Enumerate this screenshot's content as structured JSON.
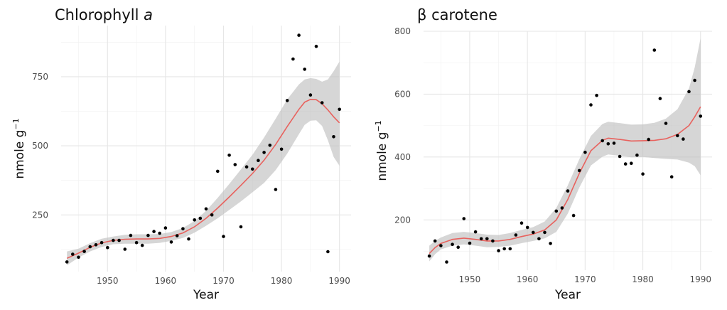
{
  "chart_data": [
    {
      "type": "scatter",
      "title": "Chlorophyll",
      "title_italic": "a",
      "xlabel": "Year",
      "ylabel": "nmole g",
      "ylabel_superscript": "−1",
      "xlim": [
        1942,
        1992
      ],
      "ylim": [
        45,
        935
      ],
      "xticks": [
        1950,
        1960,
        1970,
        1980,
        1990
      ],
      "yticks": [
        250,
        500,
        750
      ],
      "grid": true,
      "fit_color": "#e8625e",
      "band_color": "#bdbdbd",
      "points": [
        [
          1943,
          80
        ],
        [
          1944,
          108
        ],
        [
          1945,
          97
        ],
        [
          1946,
          118
        ],
        [
          1947,
          135
        ],
        [
          1948,
          142
        ],
        [
          1949,
          150
        ],
        [
          1950,
          132
        ],
        [
          1951,
          158
        ],
        [
          1952,
          158
        ],
        [
          1953,
          126
        ],
        [
          1954,
          176
        ],
        [
          1955,
          150
        ],
        [
          1956,
          140
        ],
        [
          1957,
          176
        ],
        [
          1958,
          190
        ],
        [
          1959,
          184
        ],
        [
          1960,
          203
        ],
        [
          1961,
          152
        ],
        [
          1962,
          175
        ],
        [
          1963,
          200
        ],
        [
          1964,
          163
        ],
        [
          1965,
          232
        ],
        [
          1966,
          238
        ],
        [
          1967,
          272
        ],
        [
          1968,
          250
        ],
        [
          1969,
          408
        ],
        [
          1970,
          172
        ],
        [
          1971,
          466
        ],
        [
          1972,
          432
        ],
        [
          1973,
          207
        ],
        [
          1974,
          424
        ],
        [
          1975,
          416
        ],
        [
          1976,
          447
        ],
        [
          1977,
          476
        ],
        [
          1978,
          502
        ],
        [
          1979,
          342
        ],
        [
          1980,
          488
        ],
        [
          1981,
          664
        ],
        [
          1982,
          814
        ],
        [
          1983,
          900
        ],
        [
          1984,
          777
        ],
        [
          1985,
          684
        ],
        [
          1986,
          860
        ],
        [
          1987,
          656
        ],
        [
          1988,
          117
        ],
        [
          1989,
          533
        ],
        [
          1990,
          632
        ]
      ],
      "fit": [
        [
          1943,
          93
        ],
        [
          1945,
          112
        ],
        [
          1947,
          133
        ],
        [
          1949,
          149
        ],
        [
          1951,
          158
        ],
        [
          1953,
          162
        ],
        [
          1955,
          163
        ],
        [
          1957,
          163
        ],
        [
          1959,
          165
        ],
        [
          1961,
          172
        ],
        [
          1963,
          185
        ],
        [
          1965,
          207
        ],
        [
          1967,
          238
        ],
        [
          1969,
          275
        ],
        [
          1971,
          315
        ],
        [
          1973,
          357
        ],
        [
          1975,
          400
        ],
        [
          1977,
          448
        ],
        [
          1979,
          505
        ],
        [
          1981,
          570
        ],
        [
          1983,
          632
        ],
        [
          1984,
          658
        ],
        [
          1985,
          668
        ],
        [
          1986,
          667
        ],
        [
          1987,
          652
        ],
        [
          1988,
          630
        ],
        [
          1989,
          605
        ],
        [
          1990,
          583
        ]
      ],
      "band_upper": [
        [
          1943,
          118
        ],
        [
          1945,
          128
        ],
        [
          1947,
          148
        ],
        [
          1949,
          164
        ],
        [
          1951,
          172
        ],
        [
          1953,
          178
        ],
        [
          1955,
          180
        ],
        [
          1957,
          180
        ],
        [
          1959,
          181
        ],
        [
          1961,
          188
        ],
        [
          1963,
          203
        ],
        [
          1965,
          228
        ],
        [
          1967,
          265
        ],
        [
          1969,
          312
        ],
        [
          1971,
          362
        ],
        [
          1973,
          415
        ],
        [
          1975,
          468
        ],
        [
          1977,
          530
        ],
        [
          1979,
          598
        ],
        [
          1981,
          668
        ],
        [
          1983,
          722
        ],
        [
          1984,
          740
        ],
        [
          1985,
          745
        ],
        [
          1986,
          742
        ],
        [
          1987,
          732
        ],
        [
          1988,
          740
        ],
        [
          1989,
          770
        ],
        [
          1990,
          805
        ]
      ],
      "band_lower": [
        [
          1943,
          68
        ],
        [
          1945,
          96
        ],
        [
          1947,
          118
        ],
        [
          1949,
          134
        ],
        [
          1951,
          144
        ],
        [
          1953,
          146
        ],
        [
          1955,
          146
        ],
        [
          1957,
          146
        ],
        [
          1959,
          149
        ],
        [
          1961,
          156
        ],
        [
          1963,
          167
        ],
        [
          1965,
          186
        ],
        [
          1967,
          211
        ],
        [
          1969,
          238
        ],
        [
          1971,
          268
        ],
        [
          1973,
          299
        ],
        [
          1975,
          332
        ],
        [
          1977,
          366
        ],
        [
          1979,
          412
        ],
        [
          1981,
          472
        ],
        [
          1983,
          542
        ],
        [
          1984,
          576
        ],
        [
          1985,
          591
        ],
        [
          1986,
          592
        ],
        [
          1987,
          572
        ],
        [
          1988,
          520
        ],
        [
          1989,
          460
        ],
        [
          1990,
          428
        ]
      ]
    },
    {
      "type": "scatter",
      "title": "β carotene",
      "xlabel": "Year",
      "ylabel": "nmole g",
      "ylabel_superscript": "−1",
      "xlim": [
        1942,
        1992
      ],
      "ylim": [
        40,
        800
      ],
      "xticks": [
        1950,
        1960,
        1970,
        1980,
        1990
      ],
      "yticks": [
        200,
        400,
        600,
        800
      ],
      "grid": true,
      "fit_color": "#e8625e",
      "band_color": "#bdbdbd",
      "points": [
        [
          1943,
          85
        ],
        [
          1944,
          133
        ],
        [
          1945,
          118
        ],
        [
          1946,
          66
        ],
        [
          1947,
          122
        ],
        [
          1948,
          113
        ],
        [
          1949,
          204
        ],
        [
          1950,
          126
        ],
        [
          1951,
          162
        ],
        [
          1952,
          140
        ],
        [
          1953,
          140
        ],
        [
          1954,
          133
        ],
        [
          1955,
          102
        ],
        [
          1956,
          108
        ],
        [
          1957,
          108
        ],
        [
          1958,
          152
        ],
        [
          1959,
          190
        ],
        [
          1960,
          176
        ],
        [
          1961,
          160
        ],
        [
          1962,
          140
        ],
        [
          1963,
          160
        ],
        [
          1964,
          125
        ],
        [
          1965,
          228
        ],
        [
          1966,
          238
        ],
        [
          1967,
          292
        ],
        [
          1968,
          214
        ],
        [
          1969,
          357
        ],
        [
          1970,
          415
        ],
        [
          1971,
          566
        ],
        [
          1972,
          596
        ],
        [
          1973,
          452
        ],
        [
          1974,
          442
        ],
        [
          1975,
          444
        ],
        [
          1976,
          402
        ],
        [
          1977,
          378
        ],
        [
          1978,
          380
        ],
        [
          1979,
          406
        ],
        [
          1980,
          346
        ],
        [
          1981,
          456
        ],
        [
          1982,
          740
        ],
        [
          1983,
          586
        ],
        [
          1984,
          507
        ],
        [
          1985,
          337
        ],
        [
          1986,
          468
        ],
        [
          1987,
          457
        ],
        [
          1988,
          608
        ],
        [
          1989,
          644
        ],
        [
          1990,
          530
        ]
      ],
      "fit": [
        [
          1943,
          93
        ],
        [
          1944,
          112
        ],
        [
          1945,
          125
        ],
        [
          1947,
          138
        ],
        [
          1949,
          142
        ],
        [
          1951,
          138
        ],
        [
          1953,
          133
        ],
        [
          1955,
          133
        ],
        [
          1957,
          138
        ],
        [
          1959,
          147
        ],
        [
          1961,
          155
        ],
        [
          1963,
          168
        ],
        [
          1965,
          200
        ],
        [
          1967,
          265
        ],
        [
          1969,
          348
        ],
        [
          1971,
          420
        ],
        [
          1973,
          453
        ],
        [
          1974,
          460
        ],
        [
          1976,
          456
        ],
        [
          1978,
          451
        ],
        [
          1980,
          452
        ],
        [
          1982,
          453
        ],
        [
          1984,
          458
        ],
        [
          1986,
          472
        ],
        [
          1988,
          500
        ],
        [
          1989,
          528
        ],
        [
          1990,
          560
        ]
      ],
      "band_upper": [
        [
          1943,
          118
        ],
        [
          1944,
          133
        ],
        [
          1945,
          144
        ],
        [
          1947,
          158
        ],
        [
          1949,
          162
        ],
        [
          1951,
          158
        ],
        [
          1953,
          153
        ],
        [
          1955,
          152
        ],
        [
          1957,
          158
        ],
        [
          1959,
          168
        ],
        [
          1961,
          177
        ],
        [
          1963,
          195
        ],
        [
          1965,
          238
        ],
        [
          1967,
          310
        ],
        [
          1969,
          393
        ],
        [
          1971,
          467
        ],
        [
          1973,
          505
        ],
        [
          1974,
          512
        ],
        [
          1976,
          508
        ],
        [
          1978,
          503
        ],
        [
          1980,
          504
        ],
        [
          1982,
          509
        ],
        [
          1984,
          522
        ],
        [
          1986,
          552
        ],
        [
          1988,
          618
        ],
        [
          1989,
          685
        ],
        [
          1990,
          778
        ]
      ],
      "band_lower": [
        [
          1943,
          68
        ],
        [
          1944,
          91
        ],
        [
          1945,
          106
        ],
        [
          1947,
          118
        ],
        [
          1949,
          122
        ],
        [
          1951,
          118
        ],
        [
          1953,
          113
        ],
        [
          1955,
          114
        ],
        [
          1957,
          118
        ],
        [
          1959,
          126
        ],
        [
          1961,
          133
        ],
        [
          1963,
          141
        ],
        [
          1965,
          162
        ],
        [
          1967,
          220
        ],
        [
          1969,
          303
        ],
        [
          1971,
          373
        ],
        [
          1973,
          401
        ],
        [
          1974,
          408
        ],
        [
          1976,
          404
        ],
        [
          1978,
          399
        ],
        [
          1980,
          400
        ],
        [
          1982,
          397
        ],
        [
          1984,
          394
        ],
        [
          1986,
          392
        ],
        [
          1988,
          382
        ],
        [
          1989,
          371
        ],
        [
          1990,
          342
        ]
      ]
    }
  ]
}
